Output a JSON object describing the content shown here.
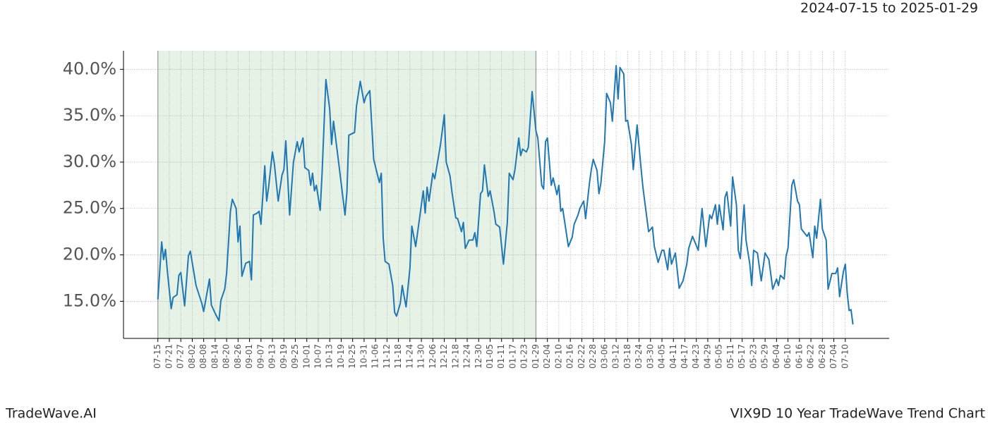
{
  "chart_data": {
    "type": "line",
    "date_range": "2024-07-15 to 2025-01-29",
    "brand": "TradeWave.AI",
    "title": "VIX9D 10 Year TradeWave Trend Chart",
    "color": "#1f77b4",
    "highlight": [
      0,
      198
    ],
    "highlight_color": "#e5f2e5",
    "grid": true,
    "xlim": [
      -18,
      383
    ],
    "ylim": [
      11,
      42
    ],
    "yticks": [
      {
        "value": 15,
        "label": "15.0%"
      },
      {
        "value": 20,
        "label": "20.0%"
      },
      {
        "value": 25,
        "label": "25.0%"
      },
      {
        "value": 30,
        "label": "30.0%"
      },
      {
        "value": 35,
        "label": "35.0%"
      },
      {
        "value": 40,
        "label": "40.0%"
      }
    ],
    "xticks": [
      {
        "value": 0,
        "label": "07-15"
      },
      {
        "value": 6,
        "label": "07-21"
      },
      {
        "value": 12,
        "label": "07-27"
      },
      {
        "value": 18,
        "label": "08-02"
      },
      {
        "value": 24,
        "label": "08-08"
      },
      {
        "value": 30,
        "label": "08-14"
      },
      {
        "value": 36,
        "label": "08-20"
      },
      {
        "value": 42,
        "label": "08-26"
      },
      {
        "value": 48,
        "label": "09-01"
      },
      {
        "value": 54,
        "label": "09-07"
      },
      {
        "value": 60,
        "label": "09-13"
      },
      {
        "value": 66,
        "label": "09-19"
      },
      {
        "value": 72,
        "label": "09-25"
      },
      {
        "value": 78,
        "label": "10-01"
      },
      {
        "value": 84,
        "label": "10-07"
      },
      {
        "value": 90,
        "label": "10-13"
      },
      {
        "value": 96,
        "label": "10-19"
      },
      {
        "value": 102,
        "label": "10-25"
      },
      {
        "value": 108,
        "label": "10-31"
      },
      {
        "value": 114,
        "label": "11-06"
      },
      {
        "value": 120,
        "label": "11-12"
      },
      {
        "value": 126,
        "label": "11-18"
      },
      {
        "value": 132,
        "label": "11-24"
      },
      {
        "value": 138,
        "label": "11-30"
      },
      {
        "value": 144,
        "label": "12-06"
      },
      {
        "value": 150,
        "label": "12-12"
      },
      {
        "value": 156,
        "label": "12-18"
      },
      {
        "value": 162,
        "label": "12-24"
      },
      {
        "value": 168,
        "label": "12-30"
      },
      {
        "value": 174,
        "label": "01-05"
      },
      {
        "value": 180,
        "label": "01-11"
      },
      {
        "value": 186,
        "label": "01-17"
      },
      {
        "value": 192,
        "label": "01-23"
      },
      {
        "value": 198,
        "label": "01-29"
      },
      {
        "value": 204,
        "label": "02-04"
      },
      {
        "value": 210,
        "label": "02-10"
      },
      {
        "value": 216,
        "label": "02-16"
      },
      {
        "value": 222,
        "label": "02-22"
      },
      {
        "value": 228,
        "label": "02-28"
      },
      {
        "value": 234,
        "label": "03-06"
      },
      {
        "value": 240,
        "label": "03-12"
      },
      {
        "value": 246,
        "label": "03-18"
      },
      {
        "value": 252,
        "label": "03-24"
      },
      {
        "value": 258,
        "label": "03-30"
      },
      {
        "value": 264,
        "label": "04-05"
      },
      {
        "value": 270,
        "label": "04-11"
      },
      {
        "value": 276,
        "label": "04-17"
      },
      {
        "value": 282,
        "label": "04-23"
      },
      {
        "value": 288,
        "label": "04-29"
      },
      {
        "value": 294,
        "label": "05-05"
      },
      {
        "value": 300,
        "label": "05-11"
      },
      {
        "value": 306,
        "label": "05-17"
      },
      {
        "value": 312,
        "label": "05-23"
      },
      {
        "value": 318,
        "label": "05-29"
      },
      {
        "value": 324,
        "label": "06-04"
      },
      {
        "value": 330,
        "label": "06-10"
      },
      {
        "value": 336,
        "label": "06-16"
      },
      {
        "value": 342,
        "label": "06-22"
      },
      {
        "value": 348,
        "label": "06-28"
      },
      {
        "value": 354,
        "label": "07-04"
      },
      {
        "value": 360,
        "label": "07-10"
      }
    ],
    "x": [
      0,
      2,
      3,
      4,
      5,
      7,
      8,
      10,
      11,
      12,
      14,
      16,
      17,
      20,
      23,
      24,
      27,
      28,
      30,
      32,
      33,
      35,
      36,
      38,
      39,
      41,
      42,
      43,
      44,
      46,
      48,
      49,
      50,
      52,
      53,
      54,
      56,
      57,
      58,
      60,
      61,
      63,
      65,
      66,
      67,
      69,
      71,
      73,
      74,
      76,
      77,
      79,
      80,
      81,
      82,
      83,
      85,
      86,
      88,
      90,
      91,
      92,
      94,
      96,
      98,
      99,
      100,
      103,
      104,
      106,
      108,
      109,
      111,
      113,
      116,
      117,
      118,
      119,
      121,
      123,
      124,
      125,
      127,
      128,
      129,
      130,
      132,
      133,
      135,
      136,
      137,
      139,
      140,
      141,
      142,
      144,
      145,
      148,
      150,
      151,
      153,
      154,
      156,
      157,
      159,
      160,
      161,
      163,
      165,
      166,
      167,
      169,
      170,
      171,
      173,
      174,
      176,
      177,
      179,
      181,
      183,
      184,
      186,
      187,
      189,
      190,
      191,
      193,
      194,
      196,
      198,
      199,
      201,
      202,
      203,
      204,
      206,
      207,
      209,
      210,
      211,
      212,
      215,
      217,
      218,
      220,
      221,
      223,
      224,
      226,
      227,
      228,
      230,
      231,
      232,
      234,
      235,
      237,
      238,
      240,
      241,
      242,
      244,
      245,
      246,
      248,
      249,
      251,
      253,
      254,
      257,
      259,
      260,
      262,
      264,
      265,
      267,
      268,
      269,
      271,
      273,
      275,
      277,
      278,
      280,
      282,
      283,
      285,
      287,
      289,
      290,
      292,
      293,
      294,
      296,
      297,
      298,
      300,
      301,
      303,
      304,
      305,
      307,
      308,
      310,
      311,
      312,
      314,
      316,
      318,
      320,
      322,
      324,
      325,
      326,
      328,
      329,
      330,
      332,
      333,
      335,
      336,
      337,
      340,
      341,
      343,
      344,
      345,
      347,
      348,
      350,
      351,
      353,
      355,
      356,
      357,
      359,
      360,
      361,
      362,
      363,
      364
    ],
    "values": [
      15.2,
      21.4,
      19.5,
      20.6,
      18.2,
      14.2,
      15.4,
      15.7,
      17.8,
      18.1,
      14.5,
      19.9,
      20.4,
      16.7,
      14.8,
      13.9,
      17.4,
      14.6,
      13.7,
      12.9,
      15.1,
      16.3,
      18.0,
      24.7,
      26.0,
      25.0,
      21.4,
      23.1,
      17.7,
      19.1,
      19.3,
      17.3,
      24.3,
      24.5,
      24.7,
      23.3,
      29.6,
      25.8,
      27.3,
      31.1,
      29.8,
      25.8,
      28.6,
      29.2,
      32.3,
      24.3,
      30.0,
      32.2,
      31.1,
      32.6,
      29.4,
      29.1,
      27.5,
      28.8,
      26.9,
      27.5,
      24.8,
      28.8,
      38.9,
      35.7,
      31.9,
      34.4,
      31.1,
      27.7,
      24.3,
      26.8,
      32.9,
      33.2,
      36.0,
      38.7,
      36.4,
      37.1,
      37.7,
      30.3,
      27.8,
      28.8,
      21.8,
      19.3,
      19.0,
      16.7,
      13.8,
      13.4,
      14.8,
      16.7,
      15.5,
      14.4,
      18.6,
      23.1,
      20.9,
      22.4,
      23.9,
      26.9,
      24.5,
      27.3,
      25.8,
      28.8,
      28.2,
      31.9,
      35.1,
      30.0,
      28.5,
      26.8,
      24.0,
      23.9,
      22.5,
      23.5,
      20.7,
      21.6,
      21.6,
      22.4,
      20.9,
      26.6,
      26.9,
      29.7,
      26.3,
      26.9,
      24.7,
      23.3,
      23.0,
      19.0,
      23.5,
      28.8,
      28.1,
      29.2,
      32.6,
      30.7,
      31.4,
      31.1,
      31.6,
      37.6,
      33.4,
      32.6,
      27.5,
      27.1,
      32.2,
      32.6,
      27.5,
      28.3,
      26.5,
      27.5,
      24.7,
      25.0,
      20.9,
      21.9,
      23.3,
      24.3,
      25.0,
      25.8,
      23.9,
      27.7,
      29.2,
      30.3,
      29.1,
      26.6,
      27.7,
      32.2,
      37.4,
      36.4,
      34.4,
      40.4,
      36.8,
      40.2,
      39.5,
      34.4,
      34.5,
      31.9,
      29.2,
      34.0,
      29.4,
      27.3,
      22.5,
      23.0,
      20.9,
      19.2,
      20.5,
      20.5,
      18.4,
      20.7,
      19.0,
      20.2,
      16.4,
      17.2,
      19.0,
      20.7,
      22.0,
      21.0,
      20.5,
      25.0,
      20.9,
      24.3,
      23.9,
      25.4,
      23.3,
      25.4,
      22.7,
      26.2,
      26.8,
      23.1,
      28.4,
      25.4,
      20.5,
      19.6,
      25.4,
      21.6,
      19.0,
      16.7,
      20.5,
      20.2,
      17.2,
      20.2,
      19.5,
      16.3,
      17.4,
      16.7,
      17.8,
      17.4,
      19.9,
      20.7,
      27.5,
      28.1,
      25.8,
      25.4,
      22.8,
      22.0,
      22.4,
      19.7,
      23.1,
      21.8,
      26.0,
      22.8,
      21.6,
      16.3,
      18.0,
      18.0,
      18.6,
      15.5,
      18.2,
      19.0,
      15.9,
      14.0,
      14.1,
      12.5
    ]
  }
}
